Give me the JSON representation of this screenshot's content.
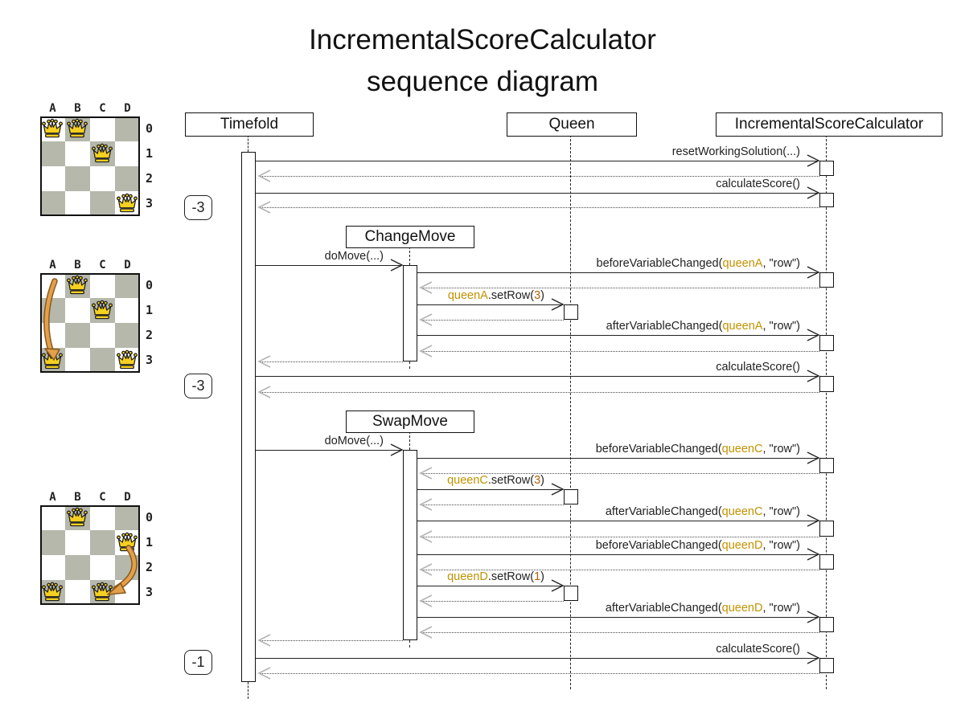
{
  "title": {
    "line1": "IncrementalScoreCalculator",
    "line2": "sequence diagram"
  },
  "colors": {
    "queen_ref": "#c29200",
    "number_literal": "#b45f06",
    "dark_cell": "#b5b8ab",
    "light_cell": "#ffffff",
    "move_arrow_fill": "#e3a04a",
    "move_arrow_edge": "#8a5a20",
    "crown_gold": "#f5d020"
  },
  "lifelines": {
    "timefold": "Timefold",
    "queen": "Queen",
    "isc": "IncrementalScoreCalculator"
  },
  "move_activations": {
    "changemove": "ChangeMove",
    "swapmove": "SwapMove"
  },
  "scores": [
    "-3",
    "-3",
    "-1"
  ],
  "boards": [
    {
      "name": "initial-solution",
      "columns": [
        "A",
        "B",
        "C",
        "D"
      ],
      "rows": [
        "0",
        "1",
        "2",
        "3"
      ],
      "queens": [
        {
          "col": "A",
          "row": 0
        },
        {
          "col": "B",
          "row": 0
        },
        {
          "col": "C",
          "row": 1
        },
        {
          "col": "D",
          "row": 3
        }
      ],
      "move_arrow": null
    },
    {
      "name": "after-change-move",
      "columns": [
        "A",
        "B",
        "C",
        "D"
      ],
      "rows": [
        "0",
        "1",
        "2",
        "3"
      ],
      "queens": [
        {
          "col": "B",
          "row": 0
        },
        {
          "col": "C",
          "row": 1
        },
        {
          "col": "A",
          "row": 3
        },
        {
          "col": "D",
          "row": 3
        }
      ],
      "move_arrow": {
        "from": "A0",
        "to": "A3"
      }
    },
    {
      "name": "after-swap-move",
      "columns": [
        "A",
        "B",
        "C",
        "D"
      ],
      "rows": [
        "0",
        "1",
        "2",
        "3"
      ],
      "queens": [
        {
          "col": "B",
          "row": 0
        },
        {
          "col": "D",
          "row": 1
        },
        {
          "col": "A",
          "row": 3
        },
        {
          "col": "C",
          "row": 3
        }
      ],
      "move_arrow": {
        "from": "D1",
        "to": "C3"
      }
    }
  ],
  "messages": [
    {
      "from": "timefold",
      "to": "isc",
      "parts": [
        {
          "t": "resetWorkingSolution(...)",
          "c": "k"
        }
      ]
    },
    {
      "from": "timefold",
      "to": "isc",
      "parts": [
        {
          "t": "calculateScore()",
          "c": "k"
        }
      ]
    },
    {
      "from": "timefold",
      "to": "changemove",
      "parts": [
        {
          "t": "doMove(...)",
          "c": "k"
        }
      ]
    },
    {
      "from": "changemove",
      "to": "isc",
      "parts": [
        {
          "t": "beforeVariableChanged(",
          "c": "k"
        },
        {
          "t": "queenA",
          "c": "q"
        },
        {
          "t": ", \"row\")",
          "c": "k"
        }
      ]
    },
    {
      "from": "changemove",
      "to": "queen",
      "parts": [
        {
          "t": "queenA",
          "c": "q"
        },
        {
          "t": ".setRow(",
          "c": "k"
        },
        {
          "t": "3",
          "c": "n"
        },
        {
          "t": ")",
          "c": "k"
        }
      ]
    },
    {
      "from": "changemove",
      "to": "isc",
      "parts": [
        {
          "t": "afterVariableChanged(",
          "c": "k"
        },
        {
          "t": "queenA",
          "c": "q"
        },
        {
          "t": ", \"row\")",
          "c": "k"
        }
      ]
    },
    {
      "from": "timefold",
      "to": "isc",
      "parts": [
        {
          "t": "calculateScore()",
          "c": "k"
        }
      ]
    },
    {
      "from": "timefold",
      "to": "swapmove",
      "parts": [
        {
          "t": "doMove(...)",
          "c": "k"
        }
      ]
    },
    {
      "from": "swapmove",
      "to": "isc",
      "parts": [
        {
          "t": "beforeVariableChanged(",
          "c": "k"
        },
        {
          "t": "queenC",
          "c": "q"
        },
        {
          "t": ", \"row\")",
          "c": "k"
        }
      ]
    },
    {
      "from": "swapmove",
      "to": "queen",
      "parts": [
        {
          "t": "queenC",
          "c": "q"
        },
        {
          "t": ".setRow(",
          "c": "k"
        },
        {
          "t": "3",
          "c": "n"
        },
        {
          "t": ")",
          "c": "k"
        }
      ]
    },
    {
      "from": "swapmove",
      "to": "isc",
      "parts": [
        {
          "t": "afterVariableChanged(",
          "c": "k"
        },
        {
          "t": "queenC",
          "c": "q"
        },
        {
          "t": ", \"row\")",
          "c": "k"
        }
      ]
    },
    {
      "from": "swapmove",
      "to": "isc",
      "parts": [
        {
          "t": "beforeVariableChanged(",
          "c": "k"
        },
        {
          "t": "queenD",
          "c": "q"
        },
        {
          "t": ", \"row\")",
          "c": "k"
        }
      ]
    },
    {
      "from": "swapmove",
      "to": "queen",
      "parts": [
        {
          "t": "queenD",
          "c": "q"
        },
        {
          "t": ".setRow(",
          "c": "k"
        },
        {
          "t": "1",
          "c": "n"
        },
        {
          "t": ")",
          "c": "k"
        }
      ]
    },
    {
      "from": "swapmove",
      "to": "isc",
      "parts": [
        {
          "t": "afterVariableChanged(",
          "c": "k"
        },
        {
          "t": "queenD",
          "c": "q"
        },
        {
          "t": ", \"row\")",
          "c": "k"
        }
      ]
    },
    {
      "from": "timefold",
      "to": "isc",
      "parts": [
        {
          "t": "calculateScore()",
          "c": "k"
        }
      ]
    }
  ]
}
